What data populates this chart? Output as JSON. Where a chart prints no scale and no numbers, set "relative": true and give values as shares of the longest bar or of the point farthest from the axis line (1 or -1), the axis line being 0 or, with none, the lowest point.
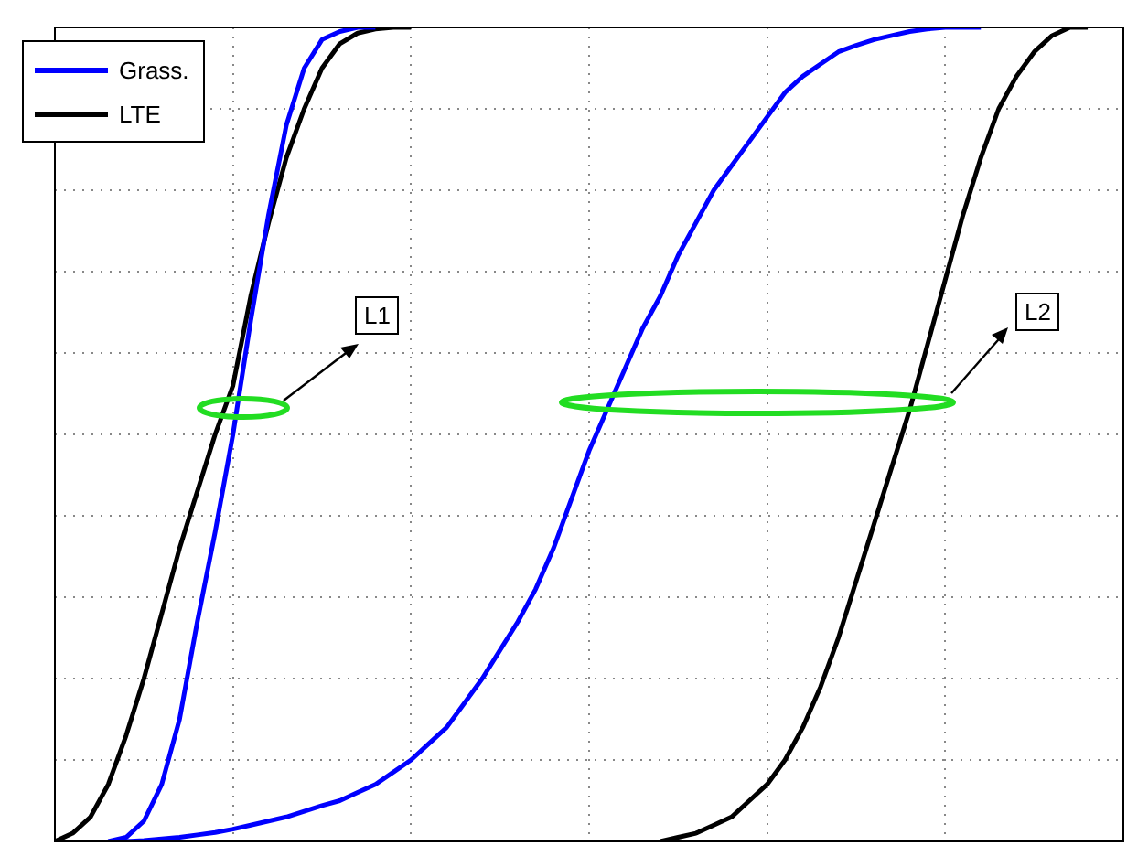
{
  "chart_data": {
    "type": "line",
    "relative": true,
    "grid": true,
    "tick_labels": false,
    "legend": "top left",
    "annotations": [
      "L1",
      "L2"
    ],
    "categories": [
      null,
      null,
      null,
      null,
      null,
      null,
      null,
      null,
      null,
      null,
      null,
      null,
      null,
      null,
      null,
      null,
      null,
      null,
      null,
      null,
      null,
      null,
      null,
      null,
      null,
      null,
      null,
      null,
      null,
      null,
      null,
      null,
      null,
      null,
      null,
      null,
      null,
      null,
      null,
      null,
      null,
      null,
      null,
      null,
      null,
      null,
      null,
      null,
      null,
      null,
      null,
      null,
      null,
      null,
      null,
      null,
      null,
      null,
      null,
      null,
      null
    ],
    "series": [
      {
        "name": "Grass.",
        "color": "#0000ff",
        "values": [
          null,
          null,
          null,
          0,
          0.005,
          0.025,
          0.07,
          0.15,
          0.27,
          0.38,
          0.5,
          0.64,
          0.77,
          0.88,
          0.95,
          0.985,
          0.995,
          1,
          1,
          null,
          null,
          null,
          null,
          null,
          null,
          null,
          null,
          null,
          null,
          null,
          null,
          null,
          null,
          null,
          null,
          null,
          null,
          null,
          null,
          null,
          null,
          null,
          null,
          null,
          null,
          null,
          null,
          null,
          null,
          null,
          null,
          null,
          null,
          null,
          null,
          null,
          null,
          null,
          null,
          null,
          null
        ]
      },
      {
        "name": "LTE",
        "color": "#000000",
        "values": [
          0,
          0.01,
          0.03,
          0.07,
          0.13,
          0.2,
          0.28,
          0.36,
          0.43,
          0.5,
          0.56,
          0.67,
          0.76,
          0.84,
          0.9,
          0.95,
          0.98,
          0.993,
          0.998,
          1,
          1,
          null,
          null,
          null,
          null,
          null,
          null,
          null,
          null,
          null,
          null,
          null,
          null,
          null,
          null,
          null,
          null,
          null,
          null,
          null,
          null,
          null,
          null,
          null,
          null,
          null,
          null,
          null,
          null,
          null,
          null,
          null,
          null,
          null,
          null,
          null,
          null,
          null,
          null,
          null,
          null
        ]
      },
      {
        "color": "#0000ff",
        "values": [
          null,
          null,
          null,
          null,
          0,
          0.001,
          0.003,
          0.005,
          0.008,
          0.011,
          0.015,
          0.02,
          0.025,
          0.03,
          0.037,
          0.044,
          0.05,
          0.06,
          0.07,
          0.085,
          0.1,
          0.12,
          0.14,
          0.17,
          0.2,
          0.235,
          0.27,
          0.31,
          0.36,
          0.42,
          0.48,
          0.53,
          0.58,
          0.63,
          0.67,
          0.72,
          0.76,
          0.8,
          0.83,
          0.86,
          0.89,
          0.92,
          0.94,
          0.955,
          0.97,
          0.978,
          0.985,
          0.99,
          0.995,
          0.998,
          1,
          1,
          1,
          null,
          null,
          null,
          null,
          null,
          null,
          null,
          null
        ]
      },
      {
        "color": "#000000",
        "values": [
          null,
          null,
          null,
          null,
          null,
          null,
          null,
          null,
          null,
          null,
          null,
          null,
          null,
          null,
          null,
          null,
          null,
          null,
          null,
          null,
          null,
          null,
          null,
          null,
          null,
          null,
          null,
          null,
          null,
          null,
          null,
          null,
          null,
          null,
          0,
          0.005,
          0.01,
          0.02,
          0.03,
          0.05,
          0.07,
          0.1,
          0.14,
          0.19,
          0.25,
          0.32,
          0.39,
          0.46,
          0.53,
          0.61,
          0.69,
          0.77,
          0.84,
          0.9,
          0.94,
          0.97,
          0.99,
          1,
          1,
          null,
          null
        ]
      }
    ]
  }
}
